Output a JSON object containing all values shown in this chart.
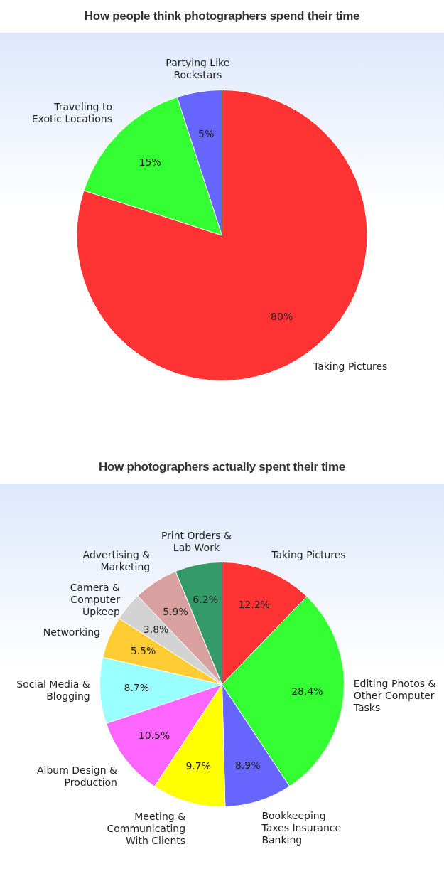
{
  "chart_data": [
    {
      "type": "pie",
      "title": "How people think photographers  spend their time",
      "categories": [
        "Taking Pictures",
        "Traveling to Exotic Locations",
        "Partying Like Rockstars"
      ],
      "values": [
        80,
        15,
        5
      ],
      "colors": [
        "#ff3333",
        "#33ff33",
        "#6666ff"
      ],
      "value_labels": [
        "80%",
        "15%",
        "5%"
      ],
      "legend": false
    },
    {
      "type": "pie",
      "title": "How photographers actually spent their time",
      "categories": [
        "Taking Pictures",
        "Editing Photos & Other Computer Tasks",
        "Bookkeeping Taxes Insurance Banking",
        "Meeting & Communicating With Clients",
        "Album Design & Production",
        "Social Media & Blogging",
        "Networking",
        "Camera & Computer Upkeep",
        "Advertising & Marketing",
        "Print Orders & Lab Work"
      ],
      "values": [
        12.2,
        28.4,
        8.9,
        9.7,
        10.5,
        8.7,
        5.5,
        3.8,
        5.9,
        6.2
      ],
      "colors": [
        "#ff3333",
        "#33ff33",
        "#6666ff",
        "#ffff00",
        "#ff66ff",
        "#99ffff",
        "#ffcc33",
        "#d3d3d3",
        "#d9a0a0",
        "#339966"
      ],
      "value_labels": [
        "12.2%",
        "28.4%",
        "8.9%",
        "9.7%",
        "10.5%",
        "8.7%",
        "5.5%",
        "3.8%",
        "5.9%",
        "6.2%"
      ],
      "legend": false
    }
  ]
}
